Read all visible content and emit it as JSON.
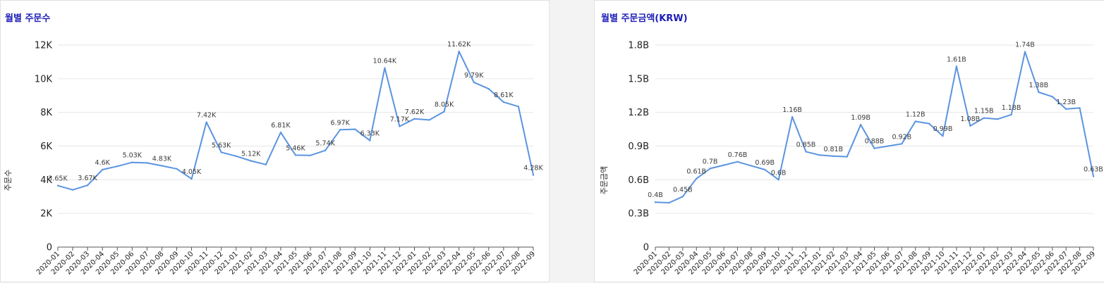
{
  "colors": {
    "line": "#5b94e0",
    "grid": "#e6e6e6",
    "title": "#1d1db8",
    "axis": "#555555"
  },
  "chart_data": [
    {
      "type": "line",
      "title": "월별 주문수",
      "xlabel": "",
      "ylabel": "주문수",
      "ylim": [
        0,
        12000
      ],
      "yticks": [
        0,
        2000,
        4000,
        6000,
        8000,
        10000,
        12000
      ],
      "ytick_labels": [
        "0",
        "2K",
        "4K",
        "6K",
        "8K",
        "10K",
        "12K"
      ],
      "grid": true,
      "x": [
        "2020-01",
        "2020-02",
        "2020-03",
        "2020-04",
        "2020-05",
        "2020-06",
        "2020-07",
        "2020-08",
        "2020-09",
        "2020-10",
        "2020-11",
        "2020-12",
        "2021-01",
        "2021-02",
        "2021-03",
        "2021-04",
        "2021-05",
        "2021-06",
        "2021-07",
        "2021-08",
        "2021-09",
        "2021-10",
        "2021-11",
        "2021-12",
        "2022-01",
        "2022-02",
        "2022-03",
        "2022-04",
        "2022-05",
        "2022-06",
        "2022-07",
        "2022-08",
        "2022-09"
      ],
      "values": [
        3650,
        3400,
        3670,
        4600,
        4800,
        5030,
        5000,
        4830,
        4650,
        4050,
        7420,
        5630,
        5400,
        5120,
        4900,
        6810,
        5460,
        5450,
        5740,
        6970,
        7000,
        6330,
        10640,
        7170,
        7620,
        7550,
        8050,
        11620,
        9790,
        9400,
        8610,
        8350,
        4280
      ],
      "data_labels": [
        "3.65K",
        "",
        "3.67K",
        "4.6K",
        "",
        "5.03K",
        "",
        "4.83K",
        "",
        "4.05K",
        "7.42K",
        "5.63K",
        "",
        "5.12K",
        "",
        "6.81K",
        "5.46K",
        "",
        "5.74K",
        "6.97K",
        "",
        "6.33K",
        "10.64K",
        "7.17K",
        "7.62K",
        "",
        "8.05K",
        "11.62K",
        "9.79K",
        "",
        "8.61K",
        "",
        "4.28K"
      ]
    },
    {
      "type": "line",
      "title": "월별 주문금액(KRW)",
      "xlabel": "",
      "ylabel": "주문금액",
      "ylim": [
        0,
        1.8
      ],
      "yticks": [
        0,
        0.3,
        0.6,
        0.9,
        1.2,
        1.5,
        1.8
      ],
      "ytick_labels": [
        "0",
        "0.3B",
        "0.6B",
        "0.9B",
        "1.2B",
        "1.5B",
        "1.8B"
      ],
      "grid": true,
      "x": [
        "2020-01",
        "2020-02",
        "2020-03",
        "2020-04",
        "2020-05",
        "2020-06",
        "2020-07",
        "2020-08",
        "2020-09",
        "2020-10",
        "2020-11",
        "2020-12",
        "2021-01",
        "2021-02",
        "2021-03",
        "2021-04",
        "2021-05",
        "2021-06",
        "2021-07",
        "2021-08",
        "2021-09",
        "2021-10",
        "2021-11",
        "2021-12",
        "2022-01",
        "2022-02",
        "2022-03",
        "2022-04",
        "2022-05",
        "2022-06",
        "2022-07",
        "2022-08",
        "2022-09"
      ],
      "values": [
        0.4,
        0.395,
        0.45,
        0.61,
        0.7,
        0.73,
        0.76,
        0.725,
        0.69,
        0.6,
        1.16,
        0.85,
        0.82,
        0.81,
        0.805,
        1.09,
        0.88,
        0.9,
        0.92,
        1.12,
        1.1,
        0.99,
        1.61,
        1.08,
        1.15,
        1.14,
        1.18,
        1.74,
        1.38,
        1.34,
        1.23,
        1.24,
        0.63
      ],
      "data_labels": [
        "0.4B",
        "",
        "0.45B",
        "0.61B",
        "0.7B",
        "",
        "0.76B",
        "",
        "0.69B",
        "0.6B",
        "1.16B",
        "0.85B",
        "",
        "0.81B",
        "",
        "1.09B",
        "0.88B",
        "",
        "0.92B",
        "1.12B",
        "",
        "0.99B",
        "1.61B",
        "1.08B",
        "1.15B",
        "",
        "1.18B",
        "1.74B",
        "1.38B",
        "",
        "1.23B",
        "",
        "0.63B"
      ]
    }
  ]
}
